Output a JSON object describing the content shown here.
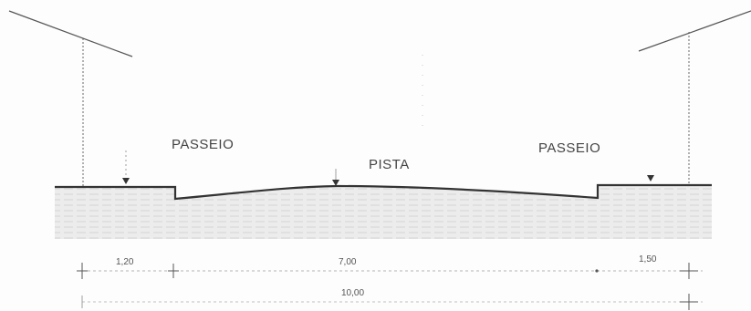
{
  "labels": {
    "sidewalk_left": "PASSEIO",
    "roadway": "PISTA",
    "sidewalk_right": "PASSEIO"
  },
  "dimensions": {
    "left_sidewalk_width": "1,20",
    "roadway_width": "7,00",
    "right_sidewalk_width": "1,50",
    "total_width": "10,00"
  },
  "colors": {
    "line": "#333333",
    "soil_fill": "#ececec",
    "hatch": "#cfcfcf"
  }
}
